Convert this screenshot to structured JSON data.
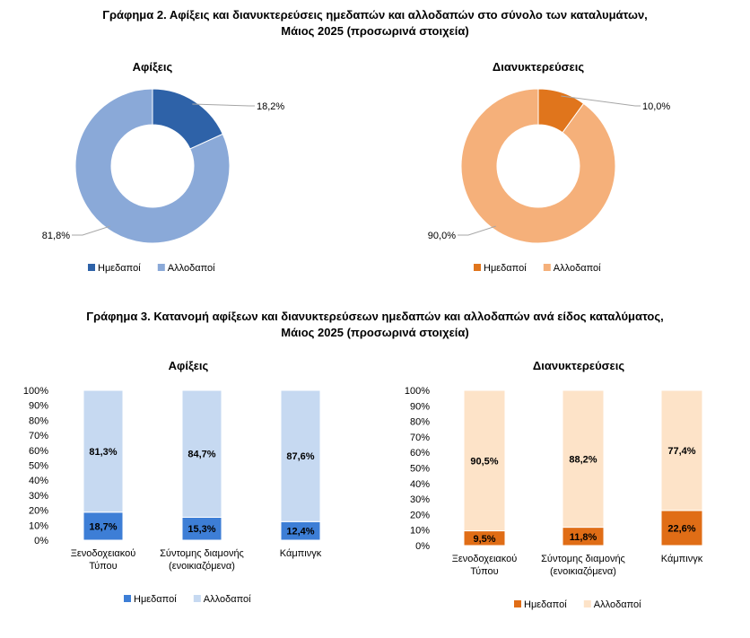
{
  "figure2": {
    "title_line1": "Γράφημα 2. Αφίξεις και διανυκτερεύσεις ημεδαπών και αλλοδαπών στο σύνολο των καταλυμάτων,",
    "title_line2": "Μάιος 2025  (προσωρινά στοιχεία)"
  },
  "figure3": {
    "title_line1": "Γράφημα 3. Κατανομή αφίξεων και διανυκτερεύσεων ημεδαπών και αλλοδαπών ανά είδος καταλύματος,",
    "title_line2": "Μάιος 2025 (προσωρινά στοιχεία)"
  },
  "colors": {
    "blue_dom": "#2e62a8",
    "blue_for": "#8aa9d8",
    "orange_dom": "#e0751c",
    "orange_for": "#f5b07a",
    "blue_bar_dom": "#3d7ed6",
    "blue_bar_for": "#c6d9f1",
    "orange_bar_dom": "#e06d16",
    "orange_bar_for": "#fde3c8"
  },
  "chart_data": [
    {
      "type": "pie",
      "subtype": "donut",
      "title": "Αφίξεις",
      "categories": [
        "Ημεδαποί",
        "Αλλοδαποί"
      ],
      "values": [
        18.2,
        81.8
      ],
      "labels": [
        "18,2%",
        "81,8%"
      ],
      "legend": "bottom"
    },
    {
      "type": "pie",
      "subtype": "donut",
      "title": "Διανυκτερεύσεις",
      "categories": [
        "Ημεδαποί",
        "Αλλοδαποί"
      ],
      "values": [
        10.0,
        90.0
      ],
      "labels": [
        "10,0%",
        "90,0%"
      ],
      "legend": "bottom"
    },
    {
      "type": "bar",
      "stacked": true,
      "title": "Αφίξεις",
      "categories": [
        "Ξενοδοχειακού Τύπου",
        "Σύντομης διαμονής (ενοικιαζόμενα)",
        "Κάμπινγκ"
      ],
      "category_lines": [
        [
          "Ξενοδοχειακού",
          "Τύπου"
        ],
        [
          "Σύντομης διαμονής",
          "(ενοικιαζόμενα)"
        ],
        [
          "Κάμπινγκ"
        ]
      ],
      "series": [
        {
          "name": "Ημεδαποί",
          "values": [
            18.7,
            15.3,
            12.4
          ],
          "labels": [
            "18,7%",
            "15,3%",
            "12,4%"
          ]
        },
        {
          "name": "Αλλοδαποί",
          "values": [
            81.3,
            84.7,
            87.6
          ],
          "labels": [
            "81,3%",
            "84,7%",
            "87,6%"
          ]
        }
      ],
      "ylim": [
        0,
        100
      ],
      "yticks": [
        "0%",
        "10%",
        "20%",
        "30%",
        "40%",
        "50%",
        "60%",
        "70%",
        "80%",
        "90%",
        "100%"
      ],
      "legend": "bottom"
    },
    {
      "type": "bar",
      "stacked": true,
      "title": "Διανυκτερεύσεις",
      "categories": [
        "Ξενοδοχειακού Τύπου",
        "Σύντομης διαμονής (ενοικιαζόμενα)",
        "Κάμπινγκ"
      ],
      "category_lines": [
        [
          "Ξενοδοχειακού",
          "Τύπου"
        ],
        [
          "Σύντομης διαμονής",
          "(ενοικιαζόμενα)"
        ],
        [
          "Κάμπινγκ"
        ]
      ],
      "series": [
        {
          "name": "Ημεδαποί",
          "values": [
            9.5,
            11.8,
            22.6
          ],
          "labels": [
            "9,5%",
            "11,8%",
            "22,6%"
          ]
        },
        {
          "name": "Αλλοδαποί",
          "values": [
            90.5,
            88.2,
            77.4
          ],
          "labels": [
            "90,5%",
            "88,2%",
            "77,4%"
          ]
        }
      ],
      "ylim": [
        0,
        100
      ],
      "yticks": [
        "0%",
        "10%",
        "20%",
        "30%",
        "40%",
        "50%",
        "60%",
        "70%",
        "80%",
        "90%",
        "100%"
      ],
      "legend": "bottom"
    }
  ]
}
